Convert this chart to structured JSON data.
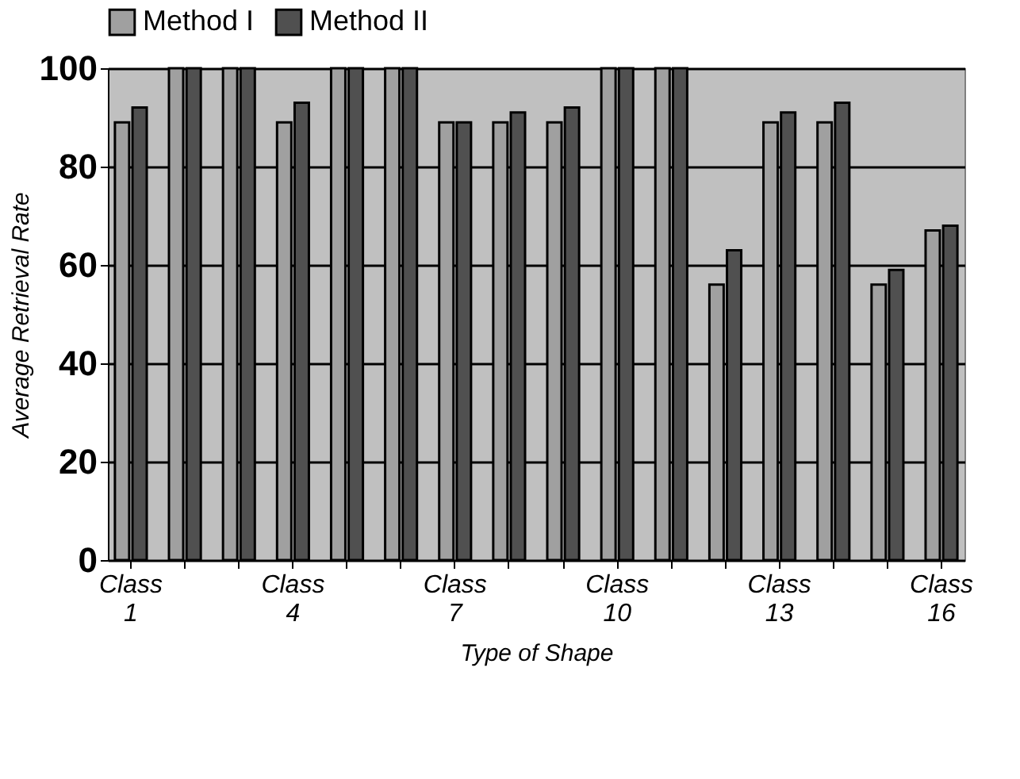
{
  "chart_data": {
    "type": "bar",
    "xlabel": "Type of Shape",
    "ylabel": "Average Retrieval Rate",
    "categories": [
      "Class 1",
      null,
      null,
      "Class 4",
      null,
      null,
      "Class 7",
      null,
      null,
      "Class 10",
      null,
      null,
      "Class 13",
      null,
      null,
      "Class 16"
    ],
    "series": [
      {
        "name": "Method I",
        "color": "#a0a0a0",
        "values": [
          89,
          100,
          100,
          89,
          100,
          100,
          89,
          89,
          89,
          100,
          100,
          56,
          89,
          89,
          56,
          67
        ]
      },
      {
        "name": "Method II",
        "color": "#505050",
        "values": [
          92,
          100,
          100,
          93,
          100,
          100,
          89,
          91,
          92,
          100,
          100,
          63,
          91,
          93,
          59,
          68
        ]
      }
    ],
    "ylim": [
      0,
      100
    ],
    "yticks": [
      0,
      20,
      40,
      60,
      80,
      100
    ],
    "grid": "y",
    "legend": "top"
  }
}
